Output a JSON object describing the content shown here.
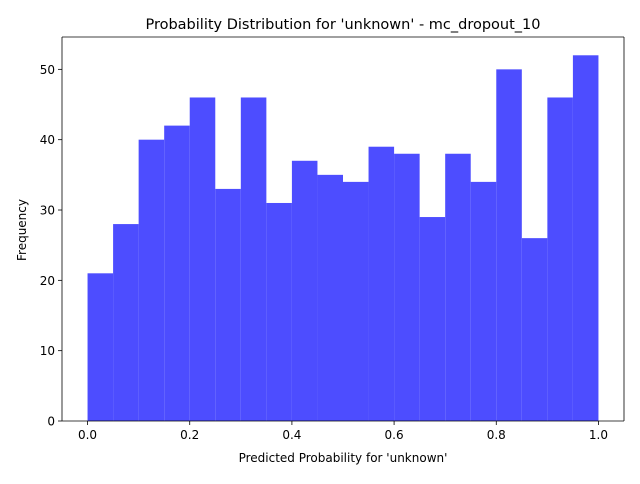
{
  "chart_data": {
    "type": "bar",
    "title": "Probability Distribution for 'unknown' - mc_dropout_10",
    "xlabel": "Predicted Probability for 'unknown'",
    "ylabel": "Frequency",
    "bin_edges": [
      0.0,
      0.05,
      0.1,
      0.15,
      0.2,
      0.25,
      0.3,
      0.35,
      0.4,
      0.45,
      0.5,
      0.55,
      0.6,
      0.65,
      0.7,
      0.75,
      0.8,
      0.85,
      0.9,
      0.95,
      1.0
    ],
    "values": [
      21,
      28,
      40,
      42,
      46,
      33,
      46,
      31,
      37,
      35,
      34,
      39,
      38,
      29,
      38,
      34,
      50,
      26,
      46,
      52
    ],
    "xlim": [
      -0.05,
      1.05
    ],
    "ylim": [
      0,
      54.6
    ],
    "xticks": [
      0.0,
      0.2,
      0.4,
      0.6,
      0.8,
      1.0
    ],
    "xtick_labels": [
      "0.0",
      "0.2",
      "0.4",
      "0.6",
      "0.8",
      "1.0"
    ],
    "yticks": [
      0,
      10,
      20,
      30,
      40,
      50
    ],
    "ytick_labels": [
      "0",
      "10",
      "20",
      "30",
      "40",
      "50"
    ],
    "bar_color": "#4d4dff",
    "grid": false
  }
}
